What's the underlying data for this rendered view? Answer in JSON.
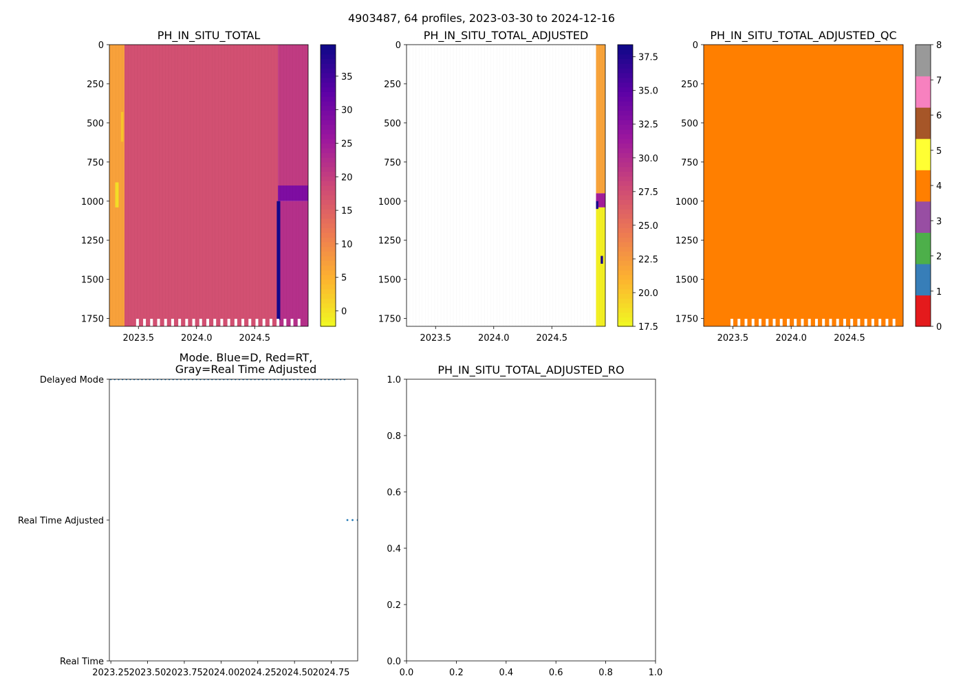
{
  "suptitle": "4903487, 64 profiles, 2023-03-30 to 2024-12-16",
  "colors": {
    "plasma": [
      "#0d0887",
      "#5c01a6",
      "#9c179e",
      "#cc4778",
      "#ed7953",
      "#fdb42f",
      "#f0f921"
    ],
    "qc": [
      "#e41a1c",
      "#377eb8",
      "#4daf4a",
      "#984ea3",
      "#ff7f00",
      "#ffff33",
      "#a65628",
      "#f781bf",
      "#999999"
    ],
    "mode_dots": "#1f77b4",
    "frame": "#000000"
  },
  "chart_data": [
    {
      "name": "ph-total",
      "type": "heatmap",
      "title": "PH_IN_SITU_TOTAL",
      "x_range": [
        2023.25,
        2024.96
      ],
      "x_ticks": [
        2023.5,
        2024.0,
        2024.5
      ],
      "x_tick_labels": [
        "2023.5",
        "2024.0",
        "2024.5"
      ],
      "y_range": [
        0,
        1800
      ],
      "y_inverted": true,
      "y_ticks": [
        0,
        250,
        500,
        750,
        1000,
        1250,
        1500,
        1750
      ],
      "y_tick_labels": [
        "0",
        "250",
        "500",
        "750",
        "1000",
        "1250",
        "1500",
        "1750"
      ],
      "colorbar": {
        "range": [
          -2.3,
          39.7
        ],
        "ticks": [
          0,
          5,
          10,
          15,
          20,
          25,
          30,
          35
        ],
        "tick_labels": [
          "0",
          "5",
          "10",
          "15",
          "20",
          "25",
          "30",
          "35"
        ]
      },
      "regions": [
        {
          "x0": 2023.25,
          "x1": 2023.38,
          "y0": 0,
          "y1": 1800,
          "value": 7.0
        },
        {
          "x0": 2023.38,
          "x1": 2024.7,
          "y0": 0,
          "y1": 1800,
          "value": 17.5
        },
        {
          "x0": 2024.7,
          "x1": 2024.96,
          "y0": 0,
          "y1": 900,
          "value": 20.5
        },
        {
          "x0": 2024.7,
          "x1": 2024.96,
          "y0": 900,
          "y1": 1000,
          "value": 29.0
        },
        {
          "x0": 2024.7,
          "x1": 2024.96,
          "y0": 1000,
          "y1": 1800,
          "value": 22.0
        },
        {
          "x0": 2024.69,
          "x1": 2024.72,
          "y0": 1000,
          "y1": 1760,
          "value": 39.0
        },
        {
          "x0": 2023.3,
          "x1": 2023.33,
          "y0": 880,
          "y1": 1040,
          "value": 0.5
        },
        {
          "x0": 2023.35,
          "x1": 2023.37,
          "y0": 430,
          "y1": 620,
          "value": 3.0
        }
      ],
      "data_gaps_at_bottom": true
    },
    {
      "name": "ph-adjusted",
      "type": "heatmap",
      "title": "PH_IN_SITU_TOTAL_ADJUSTED",
      "x_range": [
        2023.25,
        2024.96
      ],
      "x_ticks": [
        2023.5,
        2024.0,
        2024.5
      ],
      "x_tick_labels": [
        "2023.5",
        "2024.0",
        "2024.5"
      ],
      "y_range": [
        0,
        1800
      ],
      "y_inverted": true,
      "y_ticks": [
        0,
        250,
        500,
        750,
        1000,
        1250,
        1500,
        1750
      ],
      "y_tick_labels": [
        "0",
        "250",
        "500",
        "750",
        "1000",
        "1250",
        "1500",
        "1750"
      ],
      "colorbar": {
        "range": [
          17.5,
          38.4
        ],
        "ticks": [
          17.5,
          20.0,
          22.5,
          25.0,
          27.5,
          30.0,
          32.5,
          35.0,
          37.5
        ],
        "tick_labels": [
          "17.5",
          "20.0",
          "22.5",
          "25.0",
          "27.5",
          "30.0",
          "32.5",
          "35.0",
          "37.5"
        ]
      },
      "regions": [
        {
          "x0": 2024.88,
          "x1": 2024.96,
          "y0": 0,
          "y1": 950,
          "value": 22.0
        },
        {
          "x0": 2024.88,
          "x1": 2024.96,
          "y0": 950,
          "y1": 1040,
          "value": 31.0
        },
        {
          "x0": 2024.88,
          "x1": 2024.96,
          "y0": 1040,
          "y1": 1800,
          "value": 18.0
        },
        {
          "x0": 2024.88,
          "x1": 2024.9,
          "y0": 1000,
          "y1": 1050,
          "value": 38.0
        },
        {
          "x0": 2024.92,
          "x1": 2024.94,
          "y0": 1350,
          "y1": 1400,
          "value": 38.0
        }
      ],
      "data_gaps_at_bottom": false
    },
    {
      "name": "ph-adjusted-qc",
      "type": "heatmap",
      "title": "PH_IN_SITU_TOTAL_ADJUSTED_QC",
      "x_range": [
        2023.25,
        2024.96
      ],
      "x_ticks": [
        2023.5,
        2024.0,
        2024.5
      ],
      "x_tick_labels": [
        "2023.5",
        "2024.0",
        "2024.5"
      ],
      "y_range": [
        0,
        1800
      ],
      "y_inverted": true,
      "y_ticks": [
        0,
        250,
        500,
        750,
        1000,
        1250,
        1500,
        1750
      ],
      "y_tick_labels": [
        "0",
        "250",
        "500",
        "750",
        "1000",
        "1250",
        "1500",
        "1750"
      ],
      "colorbar": {
        "range": [
          0,
          8
        ],
        "ticks": [
          0,
          1,
          2,
          3,
          4,
          5,
          6,
          7,
          8
        ],
        "tick_labels": [
          "0",
          "1",
          "2",
          "3",
          "4",
          "5",
          "6",
          "7",
          "8"
        ],
        "categorical": true
      },
      "regions": [
        {
          "x0": 2023.25,
          "x1": 2024.96,
          "y0": 0,
          "y1": 1800,
          "value": 4
        }
      ],
      "data_gaps_at_bottom": true
    },
    {
      "name": "mode",
      "type": "scatter",
      "title_lines": [
        "Mode. Blue=D, Red=RT,",
        "Gray=Real Time Adjusted"
      ],
      "x_range": [
        2023.24,
        2024.93
      ],
      "x_ticks": [
        2023.25,
        2023.5,
        2023.75,
        2024.0,
        2024.25,
        2024.5,
        2024.75
      ],
      "x_tick_labels": [
        "2023.25",
        "2023.50",
        "2023.75",
        "2024.00",
        "2024.25",
        "2024.50",
        "2024.75"
      ],
      "y_range": [
        0,
        2
      ],
      "y_ticks": [
        0,
        1,
        2
      ],
      "y_tick_labels": [
        "Real Time",
        "Real Time Adjusted",
        "Delayed Mode"
      ],
      "series": [
        {
          "name": "Delayed Mode",
          "y": 2,
          "x_start": 2023.25,
          "x_end": 2024.84,
          "count": 61
        },
        {
          "name": "Real Time Adjusted",
          "y": 1,
          "x_start": 2024.86,
          "x_end": 2024.93,
          "count": 3
        }
      ]
    },
    {
      "name": "ph-adjusted-ro",
      "type": "line",
      "title": "PH_IN_SITU_TOTAL_ADJUSTED_RO",
      "x_range": [
        0,
        1
      ],
      "x_ticks": [
        0,
        0.2,
        0.4,
        0.6,
        0.8,
        1
      ],
      "x_tick_labels": [
        "0.0",
        "0.2",
        "0.4",
        "0.6",
        "0.8",
        "1.0"
      ],
      "y_range": [
        0,
        1
      ],
      "y_ticks": [
        0,
        0.2,
        0.4,
        0.6,
        0.8,
        1
      ],
      "y_tick_labels": [
        "0.0",
        "0.2",
        "0.4",
        "0.6",
        "0.8",
        "1.0"
      ],
      "series": []
    }
  ]
}
